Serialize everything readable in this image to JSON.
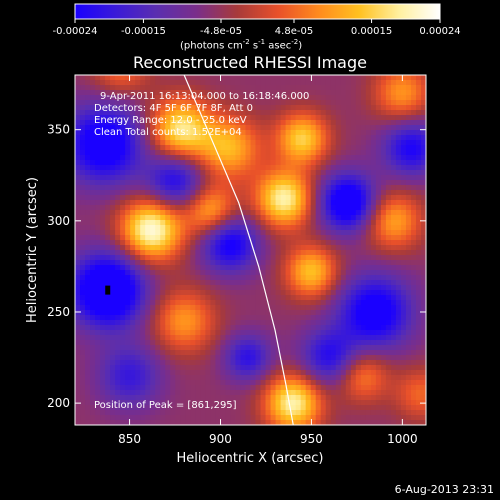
{
  "colorbar": {
    "tick_labels": [
      "-0.00024",
      "-0.00015",
      "-4.8e-05",
      "4.8e-05",
      "0.00015",
      "0.00024"
    ],
    "tick_values": [
      -0.00024,
      -0.00015,
      -4.8e-05,
      4.8e-05,
      0.00015,
      0.00024
    ],
    "range": [
      -0.00024,
      0.00024
    ],
    "unit_prefix": "(photons cm",
    "unit_exp1": "-2",
    "unit_mid1": " s",
    "unit_exp2": "-1",
    "unit_mid2": " asec",
    "unit_exp3": "-2",
    "unit_suffix": ")",
    "colors": [
      "#1a00ff",
      "#3a1ad8",
      "#5a2eb0",
      "#7a2e8a",
      "#a83a3a",
      "#e8502a",
      "#ff8a1e",
      "#ffc020",
      "#fff0a0",
      "#ffffff"
    ]
  },
  "chart_data": {
    "type": "heatmap",
    "title": "Reconstructed RHESSI Image",
    "xlabel": "Heliocentric X (arcsec)",
    "ylabel": "Heliocentric Y (arcsec)",
    "xlim": [
      820,
      1013
    ],
    "ylim": [
      188,
      380
    ],
    "xticks": [
      850,
      900,
      950,
      1000
    ],
    "yticks": [
      200,
      250,
      300,
      350
    ],
    "annotations": [
      "9-Apr-2011 16:13:04.000 to 16:18:46.000",
      "Detectors: 4F 5F 6F 7F 8F, Att 0",
      "Energy Range: 12.0 - 25.0 keV",
      "Clean    Total counts: 1.52E+04"
    ],
    "peak_label": "Position of Peak = [861,295]",
    "limb_curve": [
      [
        880,
        380
      ],
      [
        895,
        345
      ],
      [
        910,
        310
      ],
      [
        921,
        275
      ],
      [
        930,
        240
      ],
      [
        936,
        210
      ],
      [
        940,
        188
      ]
    ],
    "blobs": [
      {
        "x": 838,
        "y": 262,
        "v": -1.0,
        "s": 14
      },
      {
        "x": 836,
        "y": 342,
        "v": -0.8,
        "s": 15
      },
      {
        "x": 875,
        "y": 322,
        "v": -0.6,
        "s": 11
      },
      {
        "x": 905,
        "y": 288,
        "v": -0.7,
        "s": 11
      },
      {
        "x": 970,
        "y": 310,
        "v": -0.85,
        "s": 11
      },
      {
        "x": 985,
        "y": 250,
        "v": -0.75,
        "s": 14
      },
      {
        "x": 1005,
        "y": 340,
        "v": -0.6,
        "s": 11
      },
      {
        "x": 960,
        "y": 225,
        "v": -0.55,
        "s": 11
      },
      {
        "x": 915,
        "y": 225,
        "v": -0.5,
        "s": 9
      },
      {
        "x": 850,
        "y": 215,
        "v": -0.45,
        "s": 12
      },
      {
        "x": 862,
        "y": 295,
        "v": 0.95,
        "s": 12
      },
      {
        "x": 878,
        "y": 350,
        "v": 0.8,
        "s": 12
      },
      {
        "x": 905,
        "y": 340,
        "v": 0.6,
        "s": 12
      },
      {
        "x": 895,
        "y": 305,
        "v": 0.6,
        "s": 10
      },
      {
        "x": 935,
        "y": 312,
        "v": 0.85,
        "s": 11
      },
      {
        "x": 945,
        "y": 345,
        "v": 0.7,
        "s": 10
      },
      {
        "x": 950,
        "y": 272,
        "v": 0.65,
        "s": 10
      },
      {
        "x": 995,
        "y": 300,
        "v": 0.55,
        "s": 11
      },
      {
        "x": 1000,
        "y": 370,
        "v": 0.5,
        "s": 11
      },
      {
        "x": 940,
        "y": 200,
        "v": 0.85,
        "s": 11
      },
      {
        "x": 978,
        "y": 215,
        "v": 0.45,
        "s": 10
      },
      {
        "x": 880,
        "y": 245,
        "v": 0.5,
        "s": 12
      },
      {
        "x": 845,
        "y": 385,
        "v": 0.4,
        "s": 11
      },
      {
        "x": 1010,
        "y": 205,
        "v": 0.35,
        "s": 10
      }
    ]
  },
  "footer": {
    "date": "6-Aug-2013 23:31"
  }
}
